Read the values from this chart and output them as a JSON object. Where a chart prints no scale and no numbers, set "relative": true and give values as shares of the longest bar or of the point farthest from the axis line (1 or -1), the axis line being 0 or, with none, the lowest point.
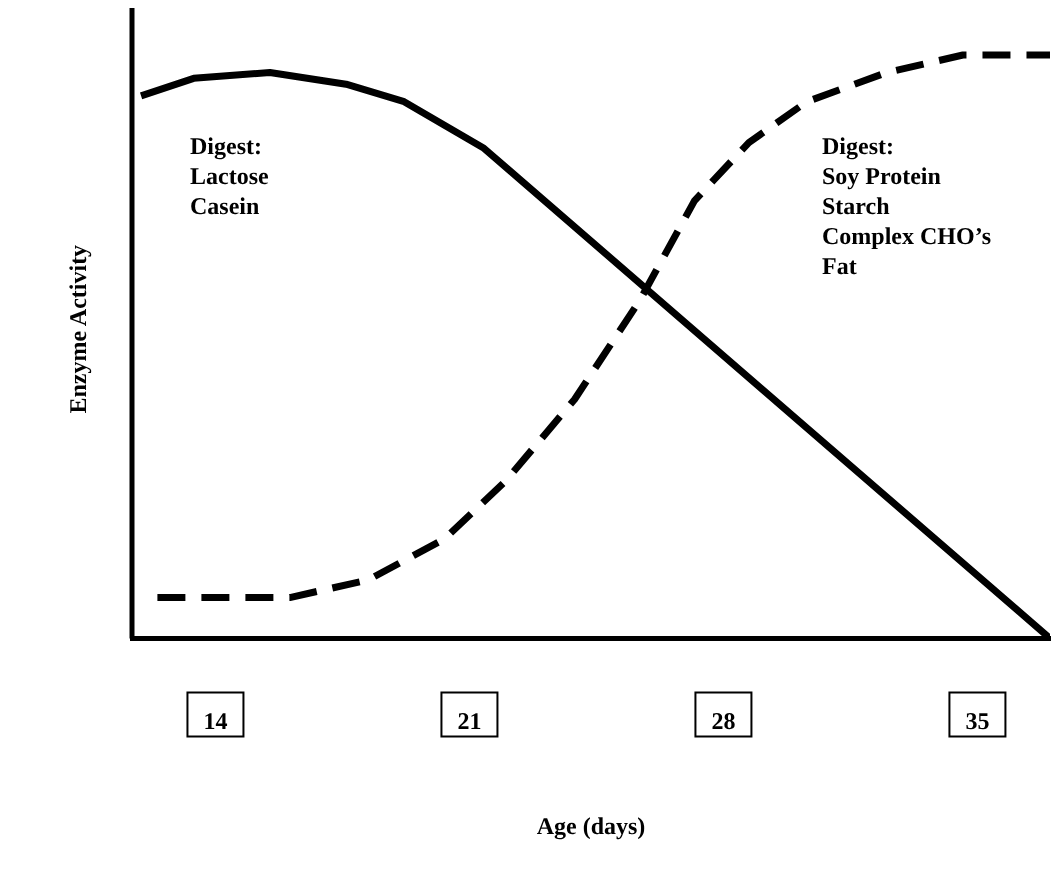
{
  "chart_data": {
    "type": "line",
    "relative": true,
    "xlabel": "Age (days)",
    "ylabel": "Enzyme Activity",
    "xlim": [
      11.7,
      37
    ],
    "xticks": [
      14,
      21,
      28,
      35
    ],
    "grid": false,
    "legend": false,
    "marker": "none",
    "annotations": [
      "Digest:\nLactose\nCasein",
      "Digest:\nSoy Protein\nStarch\nComplex CHO’s\nFat"
    ],
    "series": [
      {
        "color": "#000000",
        "line_style": "solid",
        "x": [
          11.95,
          13.4,
          15.5,
          17.6,
          19.2,
          20.3,
          21.4,
          37.0
        ],
        "values": [
          0.93,
          0.96,
          0.97,
          0.95,
          0.92,
          0.88,
          0.84,
          0
        ]
      },
      {
        "color": "#000000",
        "line_style": "dashed",
        "x": [
          12.4,
          16.05,
          18.2,
          20.3,
          22.0,
          23.9,
          25.7,
          27.2,
          28.7,
          30.3,
          32.5,
          34.6,
          37.0
        ],
        "values": [
          0.07,
          0.07,
          0.1,
          0.17,
          0.27,
          0.41,
          0.58,
          0.75,
          0.85,
          0.92,
          0.97,
          1,
          1
        ]
      }
    ]
  }
}
